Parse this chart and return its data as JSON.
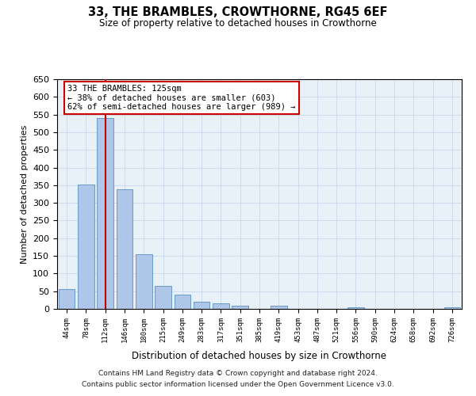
{
  "title": "33, THE BRAMBLES, CROWTHORNE, RG45 6EF",
  "subtitle": "Size of property relative to detached houses in Crowthorne",
  "xlabel": "Distribution of detached houses by size in Crowthorne",
  "ylabel": "Number of detached properties",
  "footer_line1": "Contains HM Land Registry data © Crown copyright and database right 2024.",
  "footer_line2": "Contains public sector information licensed under the Open Government Licence v3.0.",
  "bar_labels": [
    "44sqm",
    "78sqm",
    "112sqm",
    "146sqm",
    "180sqm",
    "215sqm",
    "249sqm",
    "283sqm",
    "317sqm",
    "351sqm",
    "385sqm",
    "419sqm",
    "453sqm",
    "487sqm",
    "521sqm",
    "556sqm",
    "590sqm",
    "624sqm",
    "658sqm",
    "692sqm",
    "726sqm"
  ],
  "bar_values": [
    57,
    353,
    540,
    338,
    155,
    65,
    40,
    20,
    15,
    8,
    0,
    8,
    0,
    0,
    0,
    4,
    0,
    0,
    0,
    0,
    4
  ],
  "bar_color": "#aec6e8",
  "bar_edge_color": "#5a8fc2",
  "ylim": [
    0,
    650
  ],
  "yticks": [
    0,
    50,
    100,
    150,
    200,
    250,
    300,
    350,
    400,
    450,
    500,
    550,
    600,
    650
  ],
  "property_bar_index": 2,
  "vline_color": "#cc0000",
  "annotation_text": "33 THE BRAMBLES: 125sqm\n← 38% of detached houses are smaller (603)\n62% of semi-detached houses are larger (989) →",
  "annotation_box_color": "#ffffff",
  "annotation_box_edge_color": "#cc0000",
  "background_color": "#ffffff",
  "plot_bg_color": "#e8f0f8",
  "grid_color": "#c8d8ec",
  "fig_width": 6.0,
  "fig_height": 5.0,
  "dpi": 100
}
